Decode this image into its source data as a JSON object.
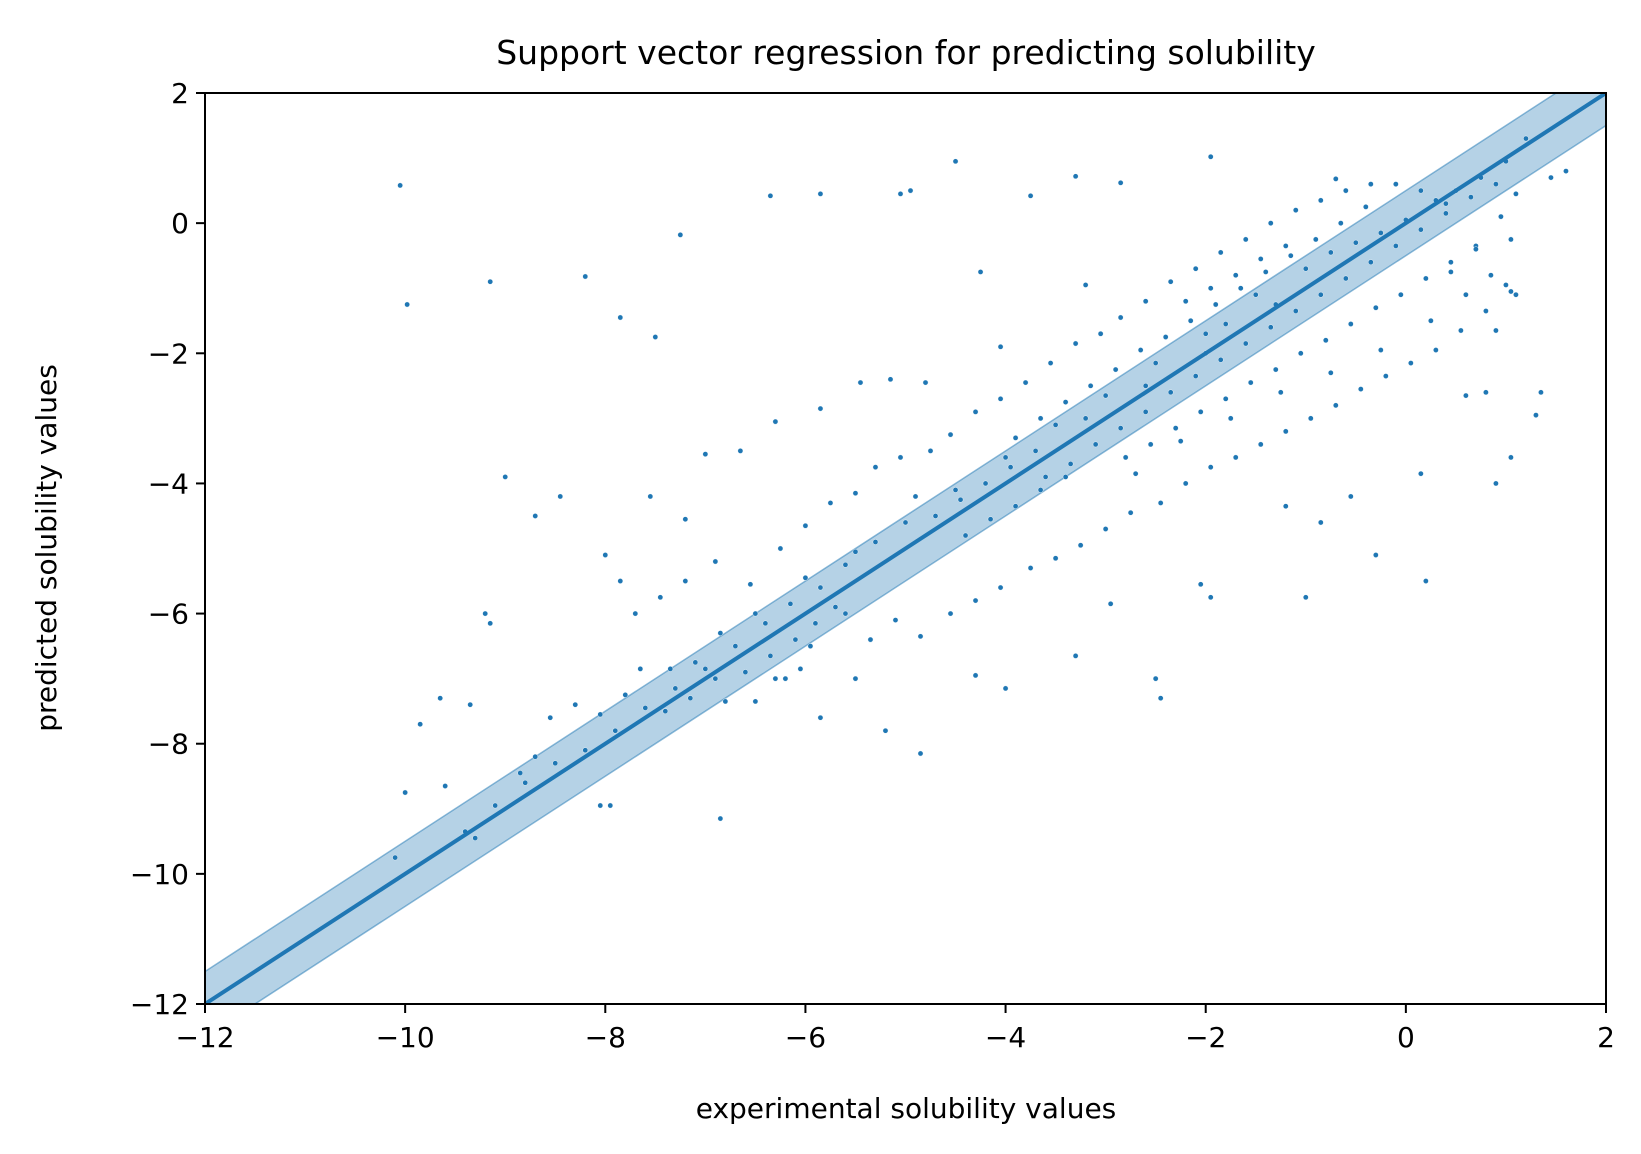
{
  "chart_data": {
    "type": "scatter",
    "title": "Support vector regression for predicting solubility",
    "xlabel": "experimental solubility values",
    "ylabel": "predicted solubility values",
    "xlim": [
      -12,
      2
    ],
    "ylim": [
      -12,
      2
    ],
    "x_ticks": [
      -12,
      -10,
      -8,
      -6,
      -4,
      -2,
      0,
      2
    ],
    "y_ticks": [
      -12,
      -10,
      -8,
      -6,
      -4,
      -2,
      0,
      2
    ],
    "x_tick_labels": [
      "−12",
      "−10",
      "−8",
      "−6",
      "−4",
      "−2",
      "0",
      "2"
    ],
    "y_tick_labels": [
      "−12",
      "−10",
      "−8",
      "−6",
      "−4",
      "−2",
      "0",
      "2"
    ],
    "grid": false,
    "colors": {
      "points": "#1f77b4",
      "line": "#1f77b4",
      "band": "#1f77b4"
    },
    "reference_line": {
      "x": [
        -12,
        2
      ],
      "y": [
        -12,
        2
      ]
    },
    "band_halfwidth": 0.5,
    "points": [
      [
        -10.05,
        0.58
      ],
      [
        -9.98,
        -1.25
      ],
      [
        -9.15,
        -0.9
      ],
      [
        -8.2,
        -0.82
      ],
      [
        -7.25,
        -0.18
      ],
      [
        -6.35,
        0.42
      ],
      [
        -5.85,
        0.45
      ],
      [
        -5.05,
        0.45
      ],
      [
        -4.95,
        0.5
      ],
      [
        -4.5,
        0.95
      ],
      [
        -3.75,
        0.42
      ],
      [
        -3.3,
        0.72
      ],
      [
        -2.85,
        0.62
      ],
      [
        -1.95,
        1.02
      ],
      [
        -0.7,
        0.68
      ],
      [
        -7.5,
        -1.75
      ],
      [
        -7.85,
        -1.45
      ],
      [
        -7.0,
        -3.55
      ],
      [
        -6.65,
        -3.5
      ],
      [
        -6.3,
        -3.05
      ],
      [
        -5.85,
        -2.85
      ],
      [
        -5.45,
        -2.45
      ],
      [
        -5.15,
        -2.4
      ],
      [
        -4.8,
        -2.45
      ],
      [
        -4.25,
        -0.75
      ],
      [
        -4.05,
        -1.9
      ],
      [
        -3.2,
        -0.95
      ],
      [
        -9.0,
        -3.9
      ],
      [
        -8.45,
        -4.2
      ],
      [
        -7.55,
        -4.2
      ],
      [
        -7.2,
        -4.55
      ],
      [
        -8.7,
        -4.5
      ],
      [
        -8.0,
        -5.1
      ],
      [
        -9.2,
        -6.0
      ],
      [
        -9.15,
        -6.15
      ],
      [
        -9.35,
        -7.4
      ],
      [
        -9.65,
        -7.3
      ],
      [
        -9.85,
        -7.7
      ],
      [
        -10.0,
        -8.75
      ],
      [
        -9.6,
        -8.65
      ],
      [
        -9.3,
        -9.45
      ],
      [
        -10.1,
        -9.75
      ],
      [
        -8.05,
        -8.95
      ],
      [
        -7.95,
        -8.95
      ],
      [
        -6.85,
        -9.15
      ],
      [
        -8.7,
        -8.2
      ],
      [
        -8.85,
        -8.45
      ],
      [
        -8.55,
        -7.6
      ],
      [
        -8.3,
        -7.4
      ],
      [
        -7.65,
        -6.85
      ],
      [
        -7.35,
        -6.85
      ],
      [
        -7.1,
        -6.75
      ],
      [
        -6.85,
        -6.3
      ],
      [
        -6.5,
        -6.0
      ],
      [
        -6.0,
        -5.45
      ],
      [
        -5.5,
        -5.05
      ],
      [
        -5.0,
        -4.6
      ],
      [
        -4.5,
        -4.1
      ],
      [
        -4.0,
        -3.6
      ],
      [
        -3.5,
        -3.1
      ],
      [
        -3.0,
        -2.65
      ],
      [
        -2.5,
        -2.15
      ],
      [
        -2.0,
        -1.7
      ],
      [
        -1.5,
        -1.1
      ],
      [
        -1.0,
        -0.7
      ],
      [
        -0.5,
        -0.3
      ],
      [
        0.0,
        0.05
      ],
      [
        0.5,
        0.5
      ],
      [
        1.0,
        0.95
      ],
      [
        1.2,
        1.3
      ],
      [
        -6.2,
        -7.0
      ],
      [
        -5.85,
        -7.6
      ],
      [
        -5.5,
        -7.0
      ],
      [
        -5.2,
        -7.8
      ],
      [
        -4.85,
        -8.15
      ],
      [
        -4.3,
        -6.95
      ],
      [
        -4.0,
        -7.15
      ],
      [
        -3.3,
        -6.65
      ],
      [
        -2.5,
        -7.0
      ],
      [
        -2.45,
        -7.3
      ],
      [
        -2.95,
        -5.85
      ],
      [
        -2.05,
        -5.55
      ],
      [
        -1.95,
        -5.75
      ],
      [
        -1.0,
        -5.75
      ],
      [
        -0.3,
        -5.1
      ],
      [
        0.2,
        -5.5
      ],
      [
        -0.55,
        -4.2
      ],
      [
        -0.85,
        -4.6
      ],
      [
        -1.2,
        -4.35
      ],
      [
        0.15,
        -3.85
      ],
      [
        0.9,
        -4.0
      ],
      [
        1.05,
        -3.6
      ],
      [
        1.3,
        -2.95
      ],
      [
        1.35,
        -2.6
      ],
      [
        0.6,
        -2.65
      ],
      [
        0.8,
        -2.6
      ],
      [
        0.9,
        -1.65
      ],
      [
        1.0,
        -0.95
      ],
      [
        1.1,
        -1.1
      ],
      [
        1.6,
        0.8
      ],
      [
        1.45,
        0.7
      ],
      [
        -7.85,
        -5.5
      ],
      [
        -7.7,
        -6.0
      ],
      [
        -7.45,
        -5.75
      ],
      [
        -7.2,
        -5.5
      ],
      [
        -6.9,
        -5.2
      ],
      [
        -6.55,
        -5.55
      ],
      [
        -6.25,
        -5.0
      ],
      [
        -6.0,
        -4.65
      ],
      [
        -5.75,
        -4.3
      ],
      [
        -5.5,
        -4.15
      ],
      [
        -5.3,
        -3.75
      ],
      [
        -5.05,
        -3.6
      ],
      [
        -4.75,
        -3.5
      ],
      [
        -4.55,
        -3.25
      ],
      [
        -4.3,
        -2.9
      ],
      [
        -4.05,
        -2.7
      ],
      [
        -3.8,
        -2.45
      ],
      [
        -3.55,
        -2.15
      ],
      [
        -3.3,
        -1.85
      ],
      [
        -3.05,
        -1.7
      ],
      [
        -2.85,
        -1.45
      ],
      [
        -2.6,
        -1.2
      ],
      [
        -2.35,
        -0.9
      ],
      [
        -2.1,
        -0.7
      ],
      [
        -1.85,
        -0.45
      ],
      [
        -1.6,
        -0.25
      ],
      [
        -1.35,
        0.0
      ],
      [
        -1.1,
        0.2
      ],
      [
        -0.85,
        0.35
      ],
      [
        -0.6,
        0.5
      ],
      [
        -0.35,
        0.6
      ],
      [
        -0.1,
        0.6
      ],
      [
        0.15,
        0.5
      ],
      [
        0.4,
        0.3
      ],
      [
        -5.6,
        -6.0
      ],
      [
        -5.35,
        -6.4
      ],
      [
        -5.1,
        -6.1
      ],
      [
        -4.85,
        -6.35
      ],
      [
        -4.55,
        -6.0
      ],
      [
        -4.3,
        -5.8
      ],
      [
        -4.05,
        -5.6
      ],
      [
        -3.75,
        -5.3
      ],
      [
        -3.5,
        -5.15
      ],
      [
        -3.25,
        -4.95
      ],
      [
        -3.0,
        -4.7
      ],
      [
        -2.75,
        -4.45
      ],
      [
        -2.45,
        -4.3
      ],
      [
        -2.2,
        -4.0
      ],
      [
        -1.95,
        -3.75
      ],
      [
        -1.7,
        -3.6
      ],
      [
        -1.45,
        -3.4
      ],
      [
        -1.2,
        -3.2
      ],
      [
        -0.95,
        -3.0
      ],
      [
        -0.7,
        -2.8
      ],
      [
        -0.45,
        -2.55
      ],
      [
        -0.2,
        -2.35
      ],
      [
        0.05,
        -2.15
      ],
      [
        0.3,
        -1.95
      ],
      [
        0.55,
        -1.65
      ],
      [
        0.8,
        -1.35
      ],
      [
        1.05,
        -1.05
      ],
      [
        0.7,
        -0.35
      ],
      [
        0.95,
        0.1
      ],
      [
        0.45,
        -0.75
      ],
      [
        -3.6,
        -3.9
      ],
      [
        -3.35,
        -3.7
      ],
      [
        -3.1,
        -3.4
      ],
      [
        -2.85,
        -3.15
      ],
      [
        -2.6,
        -2.9
      ],
      [
        -2.35,
        -2.6
      ],
      [
        -2.1,
        -2.35
      ],
      [
        -1.85,
        -2.1
      ],
      [
        -1.6,
        -1.85
      ],
      [
        -1.35,
        -1.6
      ],
      [
        -1.1,
        -1.35
      ],
      [
        -0.85,
        -1.1
      ],
      [
        -0.6,
        -0.85
      ],
      [
        -0.35,
        -0.6
      ],
      [
        -0.1,
        -0.35
      ],
      [
        0.15,
        -0.1
      ],
      [
        0.4,
        0.15
      ],
      [
        0.65,
        0.4
      ],
      [
        0.9,
        0.6
      ],
      [
        1.1,
        0.45
      ],
      [
        -3.9,
        -3.3
      ],
      [
        -3.65,
        -3.0
      ],
      [
        -3.4,
        -2.75
      ],
      [
        -3.15,
        -2.5
      ],
      [
        -2.9,
        -2.25
      ],
      [
        -2.65,
        -1.95
      ],
      [
        -2.4,
        -1.75
      ],
      [
        -2.15,
        -1.5
      ],
      [
        -1.9,
        -1.25
      ],
      [
        -1.65,
        -1.0
      ],
      [
        -1.4,
        -0.75
      ],
      [
        -1.15,
        -0.5
      ],
      [
        -0.9,
        -0.25
      ],
      [
        -0.65,
        0.0
      ],
      [
        -0.4,
        0.25
      ],
      [
        -2.2,
        -1.2
      ],
      [
        -1.95,
        -1.0
      ],
      [
        -1.7,
        -0.8
      ],
      [
        -1.45,
        -0.55
      ],
      [
        -1.2,
        -0.35
      ],
      [
        -2.8,
        -3.6
      ],
      [
        -2.55,
        -3.4
      ],
      [
        -2.3,
        -3.15
      ],
      [
        -2.05,
        -2.9
      ],
      [
        -1.8,
        -2.7
      ],
      [
        -1.55,
        -2.45
      ],
      [
        -1.3,
        -2.25
      ],
      [
        -1.05,
        -2.0
      ],
      [
        -0.8,
        -1.8
      ],
      [
        -0.55,
        -1.55
      ],
      [
        -0.3,
        -1.3
      ],
      [
        -0.05,
        -1.1
      ],
      [
        0.2,
        -0.85
      ],
      [
        0.45,
        -0.6
      ],
      [
        0.7,
        -0.4
      ],
      [
        -4.4,
        -4.8
      ],
      [
        -4.15,
        -4.55
      ],
      [
        -3.9,
        -4.35
      ],
      [
        -3.65,
        -4.1
      ],
      [
        -3.4,
        -3.9
      ],
      [
        -4.7,
        -4.5
      ],
      [
        -4.45,
        -4.25
      ],
      [
        -4.2,
        -4.0
      ],
      [
        -3.95,
        -3.75
      ],
      [
        -4.9,
        -4.2
      ],
      [
        -5.3,
        -4.9
      ],
      [
        -5.6,
        -5.25
      ],
      [
        -5.85,
        -5.6
      ],
      [
        -6.15,
        -5.85
      ],
      [
        -6.4,
        -6.15
      ],
      [
        -6.7,
        -6.5
      ],
      [
        -7.0,
        -6.85
      ],
      [
        -7.3,
        -7.15
      ],
      [
        -7.6,
        -7.45
      ],
      [
        -7.9,
        -7.8
      ],
      [
        -8.2,
        -8.1
      ],
      [
        -8.5,
        -8.3
      ],
      [
        -8.8,
        -8.6
      ],
      [
        -9.1,
        -8.95
      ],
      [
        -9.4,
        -9.35
      ],
      [
        -6.6,
        -6.9
      ],
      [
        -6.35,
        -6.65
      ],
      [
        -6.1,
        -6.4
      ],
      [
        -5.9,
        -6.15
      ],
      [
        -5.7,
        -5.9
      ],
      [
        -7.4,
        -7.5
      ],
      [
        -7.15,
        -7.3
      ],
      [
        -6.9,
        -7.0
      ],
      [
        -7.8,
        -7.25
      ],
      [
        -8.05,
        -7.55
      ],
      [
        -6.8,
        -7.35
      ],
      [
        -6.5,
        -7.35
      ],
      [
        -6.3,
        -7.0
      ],
      [
        -6.05,
        -6.85
      ],
      [
        -5.95,
        -6.5
      ],
      [
        -2.0,
        -2.0
      ],
      [
        -1.8,
        -1.55
      ],
      [
        -2.6,
        -2.5
      ],
      [
        -3.2,
        -3.0
      ],
      [
        -3.7,
        -3.5
      ],
      [
        -1.3,
        -1.25
      ],
      [
        -0.75,
        -0.45
      ],
      [
        -0.25,
        -0.15
      ],
      [
        0.3,
        0.35
      ],
      [
        0.75,
        0.7
      ],
      [
        -2.7,
        -3.85
      ],
      [
        -2.25,
        -3.35
      ],
      [
        -1.75,
        -3.0
      ],
      [
        -1.25,
        -2.6
      ],
      [
        -0.75,
        -2.3
      ],
      [
        -0.25,
        -1.95
      ],
      [
        0.25,
        -1.5
      ],
      [
        0.6,
        -1.1
      ],
      [
        0.85,
        -0.8
      ],
      [
        1.05,
        -0.25
      ]
    ]
  }
}
